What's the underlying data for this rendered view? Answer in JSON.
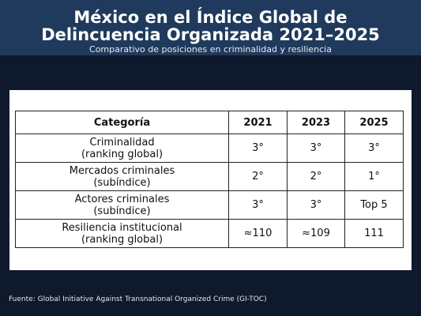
{
  "title": "México en el Índice Global de\nDelincuencia Organizada 2021–2025",
  "subtitle": "Comparativo de posiciones en criminalidad y resiliencia",
  "source": "Fuente: Global Initiative Against Transnational Organized Crime (GI-TOC)",
  "chart_data": {
    "type": "table",
    "columns": [
      "Categoría",
      "2021",
      "2023",
      "2025"
    ],
    "rows": [
      [
        "Criminalidad\n(ranking global)",
        "3°",
        "3°",
        "3°"
      ],
      [
        "Mercados criminales\n(subíndice)",
        "2°",
        "2°",
        "1°"
      ],
      [
        "Actores criminales\n(subíndice)",
        "3°",
        "3°",
        "Top 5"
      ],
      [
        "Resiliencia institucional\n(ranking global)",
        "≈110",
        "≈109",
        "111"
      ]
    ]
  },
  "colors": {
    "background": "#0e1a2c",
    "header": "#1f3a5c",
    "panel": "#ffffff"
  }
}
